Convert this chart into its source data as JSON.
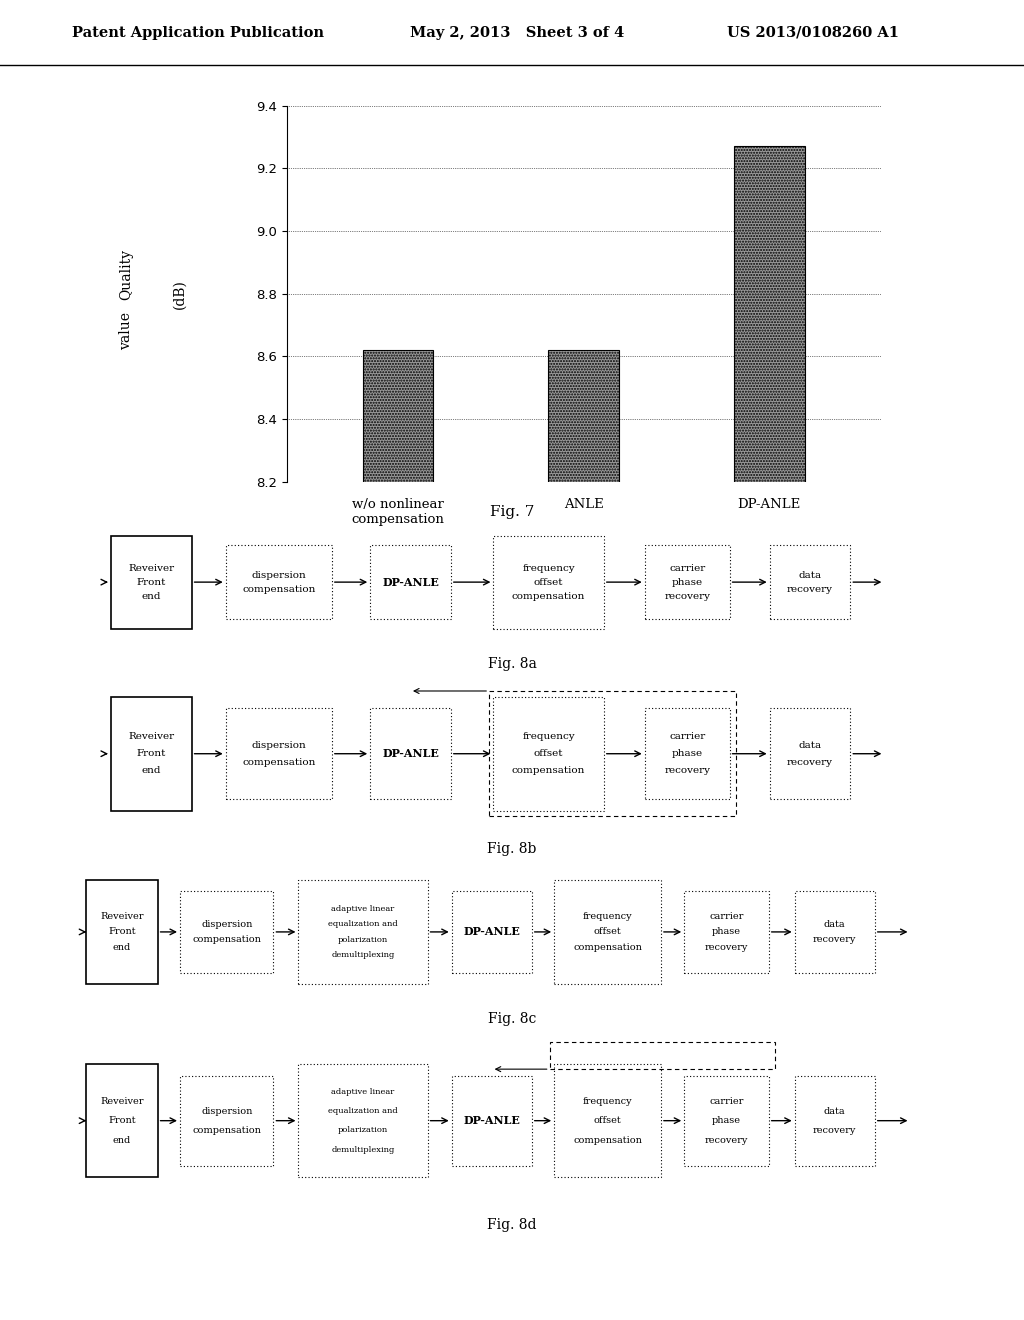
{
  "page_title_left": "Patent Application Publication",
  "page_title_mid": "May 2, 2013   Sheet 3 of 4",
  "page_title_right": "US 2013/0108260 A1",
  "bar_categories": [
    "w/o nonlinear\ncompensation",
    "ANLE",
    "DP-ANLE"
  ],
  "bar_values": [
    8.62,
    8.62,
    9.27
  ],
  "bar_color": "#999999",
  "ylim": [
    8.2,
    9.4
  ],
  "yticks": [
    8.2,
    8.4,
    8.6,
    8.8,
    9.0,
    9.2,
    9.4
  ],
  "ylabel_line1": "Quality",
  "ylabel_line2": "value",
  "ylabel_unit": "(dB)",
  "fig7_label": "Fig. 7",
  "fig8a_label": "Fig. 8a",
  "fig8b_label": "Fig. 8b",
  "fig8c_label": "Fig. 8c",
  "fig8d_label": "Fig. 8d",
  "background": "#ffffff"
}
